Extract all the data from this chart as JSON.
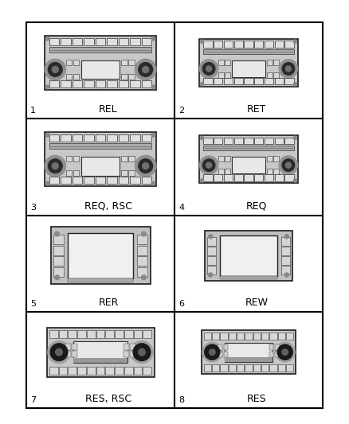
{
  "background_color": "#ffffff",
  "items": [
    {
      "num": "1",
      "label": "REL",
      "type": "standard_large"
    },
    {
      "num": "2",
      "label": "RET",
      "type": "standard_small"
    },
    {
      "num": "3",
      "label": "REQ, RSC",
      "type": "standard_large"
    },
    {
      "num": "4",
      "label": "REQ",
      "type": "standard_small"
    },
    {
      "num": "5",
      "label": "RER",
      "type": "nav_large"
    },
    {
      "num": "6",
      "label": "REW",
      "type": "nav_small"
    },
    {
      "num": "7",
      "label": "RES, RSC",
      "type": "res_large"
    },
    {
      "num": "8",
      "label": "RES",
      "type": "res_small"
    }
  ]
}
